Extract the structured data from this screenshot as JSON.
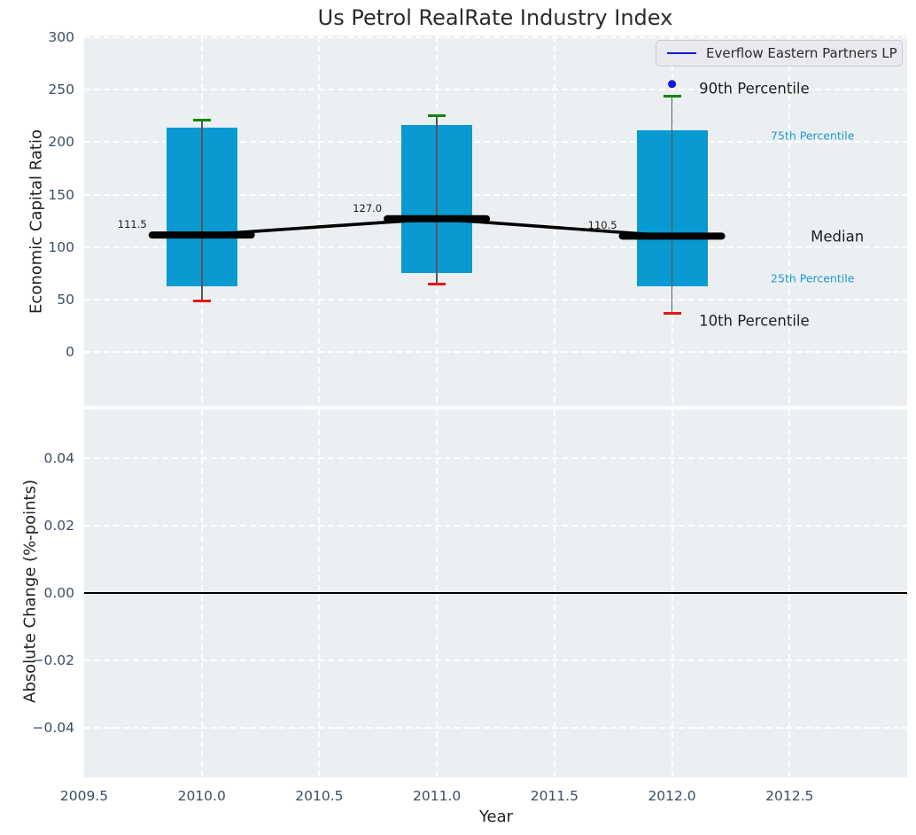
{
  "figure_title": "Us Petrol RealRate Industry Index",
  "chart_data": [
    {
      "type": "boxplot",
      "title": "Us Petrol RealRate Industry Index",
      "ylabel": "Economic Capital Ratio",
      "grid": true,
      "legend": {
        "position": "upper right",
        "entries": [
          {
            "label": "Everflow Eastern Partners LP",
            "color": "#1414dd",
            "marker": "line"
          }
        ]
      },
      "xlim": [
        2009.5,
        2013.0
      ],
      "ylim": [
        -51.5,
        301.8
      ],
      "yticks": {
        "values": [
          0,
          50,
          100,
          150,
          200,
          250,
          300
        ],
        "labels": [
          "0",
          "50",
          "100",
          "150",
          "200",
          "250",
          "300"
        ]
      },
      "boxes": [
        {
          "x": 2010,
          "whisker_low": 48.5,
          "q1": 63,
          "median": 111.5,
          "q3": 213.5,
          "whisker_high": 221.5,
          "label": "111.5"
        },
        {
          "x": 2011,
          "whisker_low": 64.5,
          "q1": 75.5,
          "median": 127.0,
          "q3": 216.5,
          "whisker_high": 225.5,
          "label": "127.0"
        },
        {
          "x": 2012,
          "whisker_low": 36.5,
          "q1": 63,
          "median": 110.5,
          "q3": 211.5,
          "whisker_high": 243.5,
          "p90_marker": 255.5,
          "label": "110.5"
        }
      ],
      "median_line": {
        "x": [
          2010,
          2011,
          2012
        ],
        "y": [
          111.5,
          127.0,
          110.5
        ]
      },
      "annotations": [
        {
          "text": "90th Percentile",
          "x": 2012.115,
          "y": 251,
          "color": "#1f1f1f",
          "size": 16.5
        },
        {
          "text": "75th Percentile",
          "x": 2012.42,
          "y": 206,
          "color": "#1a9ad0",
          "size": 12.5
        },
        {
          "text": "Median",
          "x": 2012.59,
          "y": 110,
          "color": "#1f1f1f",
          "size": 16.5
        },
        {
          "text": "25th Percentile",
          "x": 2012.42,
          "y": 70,
          "color": "#1a9ad0",
          "size": 12.5
        },
        {
          "text": "10th Percentile",
          "x": 2012.115,
          "y": 29.5,
          "color": "#1f1f1f",
          "size": 16.5
        }
      ],
      "colors": {
        "box_fill": "#089ad0",
        "whisker": "#555555",
        "cap_high": "#008700",
        "cap_low": "#e61414",
        "median": "#000000",
        "p90_dot": "#1414dd",
        "plot_bg": "#eceff1",
        "grid": "#ffffff",
        "tick": "#3d4d63"
      }
    },
    {
      "type": "line",
      "ylabel": "Absolute Change (%-points)",
      "xlabel": "Year",
      "grid": true,
      "ylim": [
        -0.0549,
        0.0546
      ],
      "yticks": {
        "values": [
          0.04,
          0.02,
          0,
          -0.02,
          -0.04
        ],
        "labels": [
          "0.04",
          "0.02",
          "0.00",
          "−0.02",
          "−0.04"
        ]
      },
      "xticks": {
        "values": [
          2009.5,
          2010.0,
          2010.5,
          2011.0,
          2011.5,
          2012.0,
          2012.5
        ],
        "labels": [
          "2009.5",
          "2010.0",
          "2010.5",
          "2011.0",
          "2011.5",
          "2012.0",
          "2012.5"
        ]
      },
      "zero_line": 0.0
    }
  ]
}
